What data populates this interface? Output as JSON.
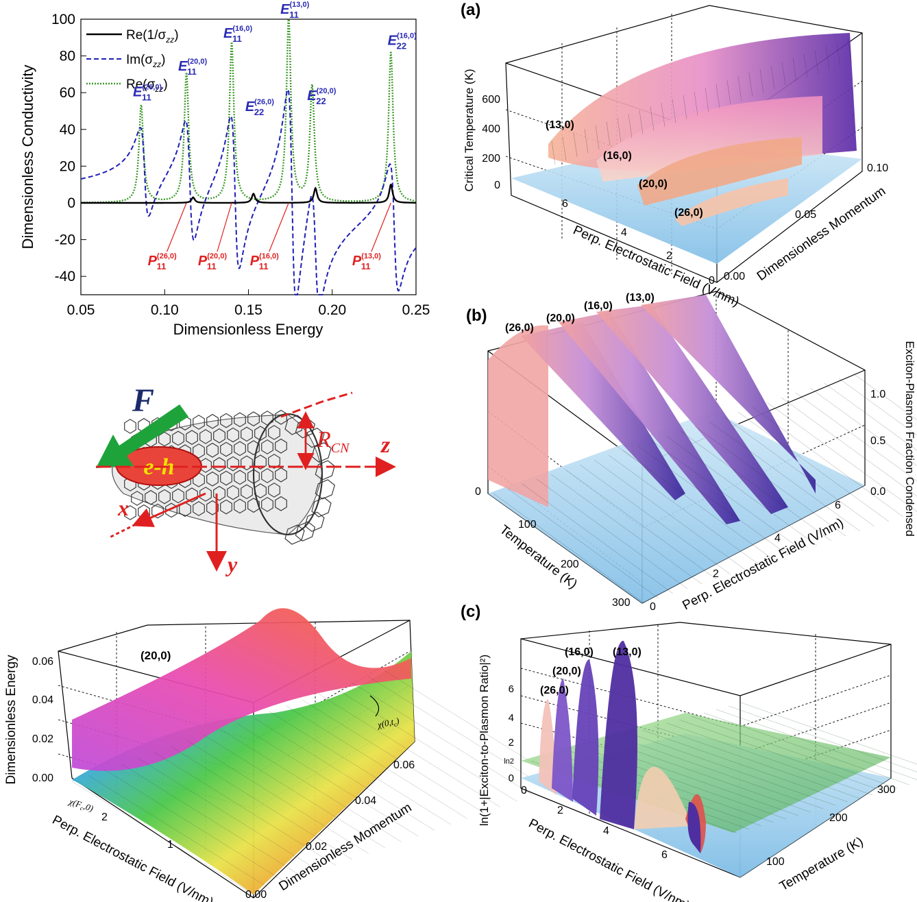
{
  "chart_data": [
    {
      "type": "line",
      "xlabel": "Dimensionless Energy",
      "ylabel": "Dimensionless Conductivity",
      "xlim": [
        0.05,
        0.25
      ],
      "ylim": [
        -50,
        100
      ],
      "x_ticks": [
        "0.05",
        "0.10",
        "0.15",
        "0.20",
        "0.25"
      ],
      "y_ticks": [
        "-40",
        "-20",
        "0",
        "20",
        "40",
        "60",
        "80",
        "100"
      ],
      "legend_position": "top-left",
      "series": [
        {
          "name": "Re(1/σ",
          "subscript": "zz",
          "suffix": ")",
          "style": "solid",
          "color": "#000000",
          "peaks": [
            {
              "x": 0.117,
              "y": 3
            },
            {
              "x": 0.153,
              "y": 5
            },
            {
              "x": 0.19,
              "y": 8
            },
            {
              "x": 0.235,
              "y": 10
            }
          ]
        },
        {
          "name": "Im(σ",
          "subscript": "zz",
          "suffix": ")",
          "style": "dashed",
          "color": "#1f1fb4",
          "peaks": [
            {
              "x": 0.088,
              "y": 25,
              "min": -28
            },
            {
              "x": 0.115,
              "y": 34,
              "min": -36
            },
            {
              "x": 0.142,
              "y": 43,
              "min": -40
            },
            {
              "x": 0.176,
              "y": 60,
              "min": -50
            },
            {
              "x": 0.19,
              "y": 34,
              "min": -33
            },
            {
              "x": 0.237,
              "y": 35,
              "min": -40
            }
          ]
        },
        {
          "name": "Re(σ",
          "subscript": "zz",
          "suffix": ")",
          "style": "dotted",
          "color": "#3d9a2a",
          "peaks": [
            {
              "x": 0.086,
              "y": 53
            },
            {
              "x": 0.113,
              "y": 70
            },
            {
              "x": 0.14,
              "y": 87
            },
            {
              "x": 0.174,
              "y": 100
            },
            {
              "x": 0.188,
              "y": 63
            },
            {
              "x": 0.235,
              "y": 82
            }
          ]
        }
      ],
      "annotations_blue": [
        {
          "base": "E",
          "sub": "11",
          "sup": "(26,0)",
          "x": 0.086,
          "y": 58
        },
        {
          "base": "E",
          "sub": "11",
          "sup": "(20,0)",
          "x": 0.113,
          "y": 72
        },
        {
          "base": "E",
          "sub": "11",
          "sup": "(16,0)",
          "x": 0.14,
          "y": 90
        },
        {
          "base": "E",
          "sub": "22",
          "sup": "(26,0)",
          "x": 0.153,
          "y": 50
        },
        {
          "base": "E",
          "sub": "11",
          "sup": "(13,0)",
          "x": 0.174,
          "y": 103
        },
        {
          "base": "E",
          "sub": "22",
          "sup": "(20,0)",
          "x": 0.19,
          "y": 56
        },
        {
          "base": "E",
          "sub": "22",
          "sup": "(16,0)",
          "x": 0.238,
          "y": 86
        }
      ],
      "annotations_red": [
        {
          "base": "P",
          "sub": "11",
          "sup": "(26,0)",
          "x": 0.094,
          "y": -34
        },
        {
          "base": "P",
          "sub": "11",
          "sup": "(20,0)",
          "x": 0.124,
          "y": -34
        },
        {
          "base": "P",
          "sub": "11",
          "sup": "(16,0)",
          "x": 0.155,
          "y": -34
        },
        {
          "base": "P",
          "sub": "11",
          "sup": "(13,0)",
          "x": 0.216,
          "y": -34
        }
      ]
    },
    {
      "type": "surface",
      "panel": "(a)",
      "zlabel": "Critical Temperature (K)",
      "xlabel": "Perp. Electrostatic Field (V/nm)",
      "ylabel": "Dimensionless Momentum",
      "z_ticks": [
        "0",
        "200",
        "400",
        "600"
      ],
      "x_ticks": [
        "6",
        "4",
        "2",
        "0"
      ],
      "y_ticks": [
        "0.00",
        "0.05",
        "0.10"
      ],
      "labels": [
        "(13,0)",
        "(16,0)",
        "(20,0)",
        "(26,0)"
      ]
    },
    {
      "type": "surface",
      "panel": "(b)",
      "zlabel": "Exciton-Plasmon Fraction Condensed",
      "xlabel": "Temperature (K)",
      "ylabel": "Perp. Electrostatic Field (V/nm)",
      "z_ticks": [
        "0.0",
        "0.5",
        "1.0"
      ],
      "x_ticks": [
        "0",
        "100",
        "200",
        "300"
      ],
      "y_ticks": [
        "0",
        "2",
        "4",
        "6"
      ],
      "labels": [
        "(26,0)",
        "(20,0)",
        "(16,0)",
        "(13,0)"
      ]
    },
    {
      "type": "surface",
      "panel": "",
      "zlabel": "Dimensionless Energy",
      "xlabel": "Perp. Electrostatic Field (V/nm)",
      "ylabel": "Dimensionless Momentum",
      "z_ticks": [
        "0.00",
        "0.02",
        "0.04",
        "0.06"
      ],
      "x_ticks": [
        "2",
        "1",
        "0"
      ],
      "y_ticks": [
        "0.00",
        "0.02",
        "0.04",
        "0.06"
      ],
      "labels": [
        "(20,0)"
      ],
      "annotations": [
        "χ(0,t",
        "χ(F",
        "c",
        ",0)",
        ")"
      ]
    },
    {
      "type": "surface",
      "panel": "(c)",
      "zlabel": "ln(1+|Exciton-to-Plasmon Ratio|²)",
      "xlabel": "Perp. Electrostatic Field (V/nm)",
      "ylabel": "Temperature (K)",
      "z_ticks": [
        "0",
        "ln2",
        "2",
        "4",
        "6"
      ],
      "x_ticks": [
        "0",
        "2",
        "4",
        "6"
      ],
      "y_ticks": [
        "100",
        "200",
        "300"
      ],
      "labels": [
        "(26,0)",
        "(20,0)",
        "(16,0)",
        "(13,0)"
      ]
    }
  ],
  "diagram": {
    "force_label": "F",
    "exciton_label": "e-h",
    "radius_label": "R",
    "radius_sub": "CN",
    "axes": [
      "z",
      "x",
      "y"
    ]
  },
  "colors": {
    "re_inv": "#000000",
    "im": "#1f1fb4",
    "re": "#3d9a2a",
    "red": "#e02020",
    "blue_label": "#2a2ab4",
    "force_green": "#1ea33a",
    "force_blue": "#1b2a6b"
  }
}
